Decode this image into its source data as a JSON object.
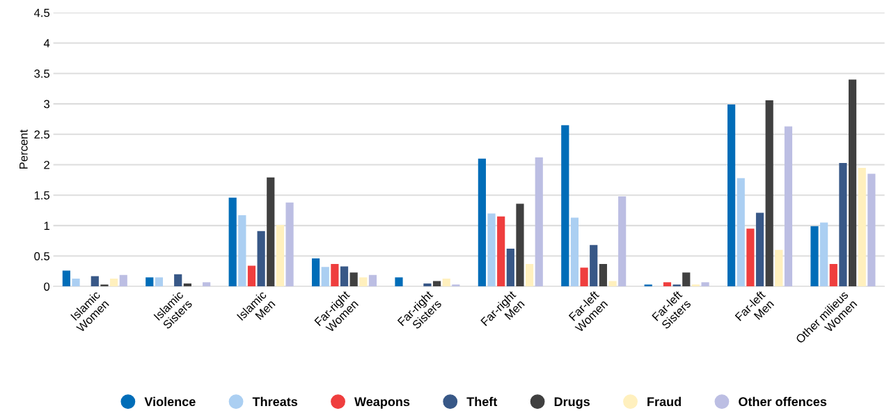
{
  "chart_data": {
    "type": "bar",
    "ylabel": "Percent",
    "categories": [
      "Islamic\nWomen",
      "Islamic\nSisters",
      "Islamic\nMen",
      "Far-right\nWomen",
      "Far-right\nSisters",
      "Far-right\nMen",
      "Far-left\nWomen",
      "Far-left\nSisters",
      "Far-left\nMen",
      "Other milieus\nWomen"
    ],
    "series": [
      {
        "name": "Violence",
        "color": "#006db8",
        "values": [
          0.26,
          0.15,
          1.46,
          0.46,
          0.15,
          2.1,
          2.65,
          0.03,
          2.99,
          0.99
        ]
      },
      {
        "name": "Threats",
        "color": "#abcff2",
        "values": [
          0.13,
          0.15,
          1.17,
          0.32,
          0,
          1.2,
          1.13,
          0,
          1.78,
          1.05
        ]
      },
      {
        "name": "Weapons",
        "color": "#ef3e3e",
        "values": [
          0,
          0,
          0.34,
          0.37,
          0,
          1.15,
          0.31,
          0.07,
          0.95,
          0.37
        ]
      },
      {
        "name": "Theft",
        "color": "#385887",
        "values": [
          0.17,
          0.2,
          0.91,
          0.33,
          0.05,
          0.62,
          0.68,
          0.03,
          1.21,
          2.03
        ]
      },
      {
        "name": "Drugs",
        "color": "#404040",
        "values": [
          0.03,
          0.05,
          1.79,
          0.23,
          0.09,
          1.36,
          0.37,
          0.23,
          3.06,
          3.4
        ]
      },
      {
        "name": "Fraud",
        "color": "#fff0be",
        "values": [
          0.13,
          0,
          1.01,
          0.15,
          0.13,
          0.37,
          0.09,
          0.03,
          0.6,
          1.95
        ]
      },
      {
        "name": "Other offences",
        "color": "#bcbee3",
        "values": [
          0.19,
          0.07,
          1.38,
          0.19,
          0.03,
          2.12,
          1.48,
          0.07,
          2.63,
          1.85
        ]
      }
    ],
    "ylim": [
      0,
      4.5
    ],
    "yticks": [
      0,
      0.5,
      1,
      1.5,
      2,
      2.5,
      3,
      3.5,
      4,
      4.5
    ],
    "grid": "y",
    "legend": "bottom"
  }
}
